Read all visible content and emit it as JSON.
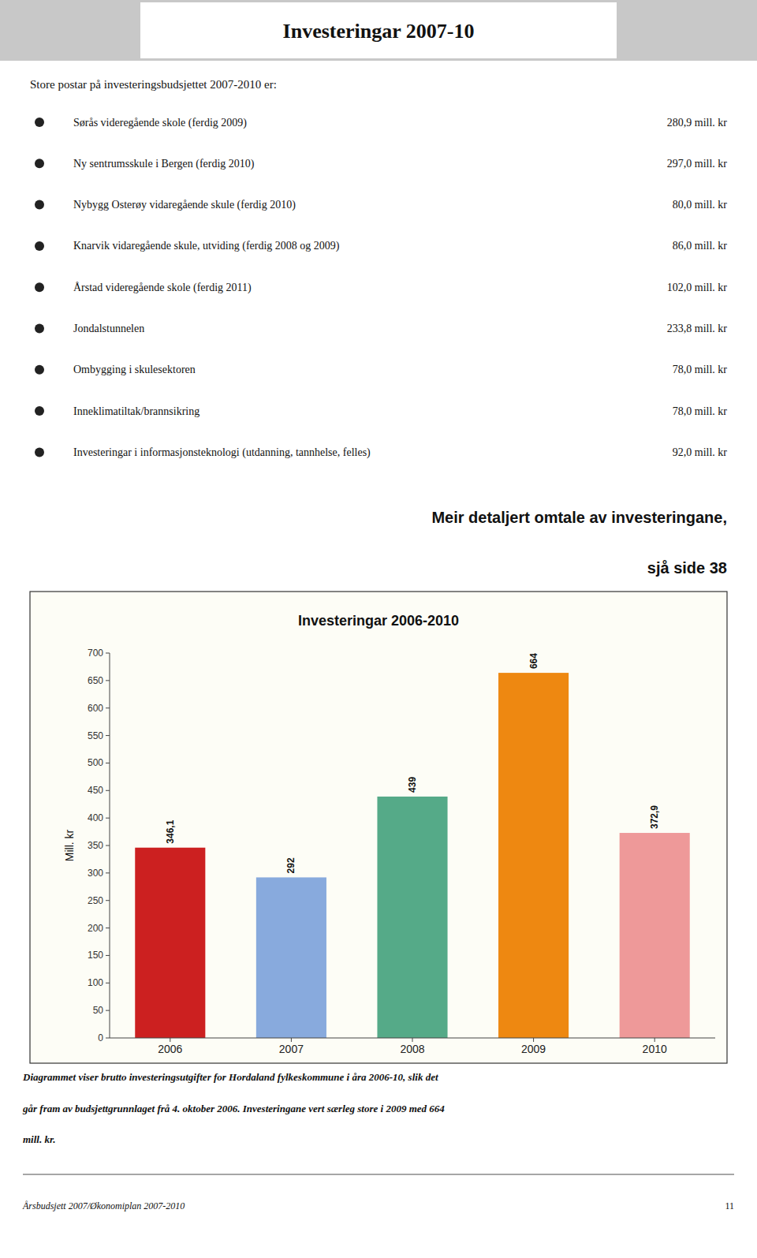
{
  "page_title": "Investeringar 2007-10",
  "intro_text": "Store postar på investeringsbudsjettet 2007-2010 er:",
  "bullet_items": [
    {
      "text": "Sørås videregående skole (ferdig 2009)",
      "value": "280,9 mill. kr"
    },
    {
      "text": "Ny sentrumsskule i Bergen (ferdig 2010)",
      "value": "297,0 mill. kr"
    },
    {
      "text": "Nybygg Osterøy vidaregående skule (ferdig 2010)",
      "value": "80,0 mill. kr"
    },
    {
      "text": "Knarvik vidaregående skule, utviding (ferdig 2008 og 2009)",
      "value": "86,0 mill. kr"
    },
    {
      "text": "Årstad videregående skole (ferdig 2011)",
      "value": "102,0 mill. kr"
    },
    {
      "text": "Jondalstunnelen",
      "value": "233,8 mill. kr"
    },
    {
      "text": "Ombygging i skulesektoren",
      "value": "78,0 mill. kr"
    },
    {
      "text": "Inneklimatiltak/brannsikring",
      "value": "78,0 mill. kr"
    },
    {
      "text": "Investeringar i informasjonsteknologi (utdanning, tannhelse, felles)",
      "value": "92,0 mill. kr"
    }
  ],
  "bold_text_line1": "Meir detaljert omtale av investeringane,",
  "bold_text_line2": "sjå side 38",
  "chart_data": {
    "type": "bar",
    "title": "Investeringar 2006-2010",
    "ylabel": "Mill. kr",
    "categories": [
      "2006",
      "2007",
      "2008",
      "2009",
      "2010"
    ],
    "values": [
      346.1,
      292,
      439,
      664,
      372.9
    ],
    "value_labels": [
      "346,1",
      "292",
      "439",
      "664",
      "372,9"
    ],
    "colors": [
      "#cc2020",
      "#88aadd",
      "#55aa88",
      "#ee8811",
      "#ee9999"
    ],
    "ylim": [
      0,
      700
    ],
    "yticks": [
      0,
      50,
      100,
      150,
      200,
      250,
      300,
      350,
      400,
      450,
      500,
      550,
      600,
      650,
      700
    ],
    "data_labels": true,
    "grid": false
  },
  "footer_italic_text1": "Diagrammet viser brutto investeringsutgifter for Hordaland fylkeskommune i åra 2006-10, slik det",
  "footer_italic_text2": "går fram av budsjettgrunnlaget frå 4. oktober 2006. Investeringane vert særleg store i 2009 med 664",
  "footer_italic_text3": "mill. kr.",
  "footer_small_left": "Årsbudsjett 2007/Økonomiplan 2007-2010",
  "footer_small_right": "11"
}
